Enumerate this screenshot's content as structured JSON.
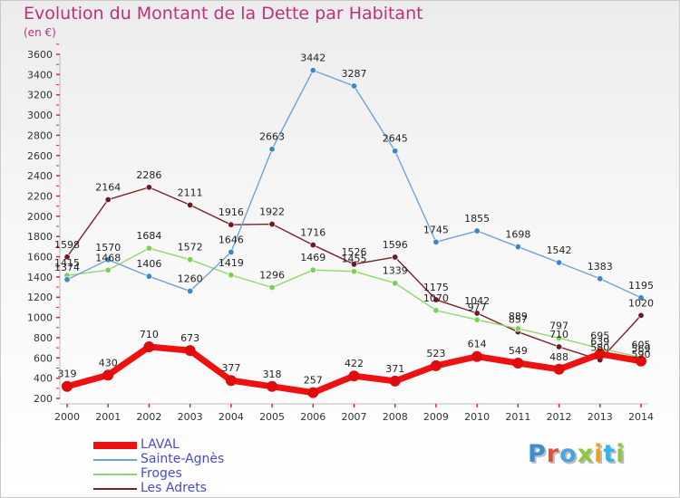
{
  "header": {
    "title": "Evolution du Montant de la Dette par Habitant",
    "unit": "(en €)"
  },
  "logo": {
    "text": "Proxiti",
    "letter_colors": [
      "#3b8ed6",
      "#e84e3a",
      "#49a5e0",
      "#8dc63f",
      "#f29f1c",
      "#3bb0e8",
      "#8dc63f"
    ]
  },
  "chart_data": {
    "type": "line",
    "title": "Evolution du Montant de la Dette par Habitant",
    "ylabel": "(en €)",
    "xlabel": "",
    "x": [
      "2000",
      "2001",
      "2002",
      "2003",
      "2004",
      "2005",
      "2006",
      "2007",
      "2008",
      "2009",
      "2010",
      "2011",
      "2012",
      "2013",
      "2014"
    ],
    "ylim": [
      200,
      3600
    ],
    "yticks": [
      200,
      400,
      600,
      800,
      1000,
      1200,
      1400,
      1600,
      1800,
      2000,
      2200,
      2400,
      2600,
      2800,
      3000,
      3200,
      3400,
      3600
    ],
    "grid": false,
    "legend": "bottom-left",
    "series": [
      {
        "name": "Les Adrets",
        "color": "#7b2029",
        "marker": "#6a1a22",
        "values": [
          1598,
          2164,
          2286,
          2111,
          1916,
          1922,
          1716,
          1526,
          1596,
          1175,
          1042,
          857,
          710,
          580,
          1020
        ],
        "labels": [
          "1598",
          "2164",
          "2286",
          "2111",
          "1916",
          "1922",
          "1716",
          "1526",
          "1596",
          "1175",
          "1042",
          "857",
          "710",
          "580",
          "1020"
        ]
      },
      {
        "name": "Froges",
        "color": "#8fd96a",
        "marker": "#7ccf55",
        "values": [
          1415,
          1468,
          1684,
          1572,
          1419,
          1296,
          1469,
          1455,
          1339,
          1070,
          977,
          889,
          797,
          695,
          605
        ],
        "labels": [
          "1415",
          "1468",
          "1684",
          "1572",
          "1419",
          "1296",
          "1469",
          "1455",
          "1339",
          "1070",
          "977",
          "889",
          "797",
          "695",
          "605"
        ]
      },
      {
        "name": "Sainte-Agnès",
        "color": "#6fa2d8",
        "marker": "#3d86cc",
        "values": [
          1374,
          1570,
          1406,
          1260,
          1646,
          2663,
          3442,
          3287,
          2645,
          1745,
          1855,
          1698,
          1542,
          1383,
          1195
        ],
        "labels": [
          "1374",
          "1570",
          "1406",
          "1260",
          "1646",
          "2663",
          "3442",
          "3287",
          "2645",
          "1745",
          "1855",
          "1698",
          "1542",
          "1383",
          "1195"
        ]
      },
      {
        "name": "LAVAL",
        "color": "#ee1111",
        "marker": "#dd0d0d",
        "values": [
          319,
          430,
          710,
          673,
          377,
          318,
          257,
          422,
          371,
          523,
          614,
          549,
          488,
          639,
          569
        ],
        "labels": [
          "319",
          "430",
          "710",
          "673",
          "377",
          "318",
          "257",
          "422",
          "371",
          "523",
          "614",
          "549",
          "488",
          "639",
          "569"
        ]
      }
    ],
    "extra_labels": [
      {
        "x": "2014",
        "text": "590"
      }
    ]
  },
  "legend": [
    {
      "label": "LAVAL",
      "color": "#ee1111"
    },
    {
      "label": "Sainte-Agnès",
      "color": "#6fa2d8"
    },
    {
      "label": "Froges",
      "color": "#8fd96a"
    },
    {
      "label": "Les Adrets",
      "color": "#7b2029"
    }
  ]
}
